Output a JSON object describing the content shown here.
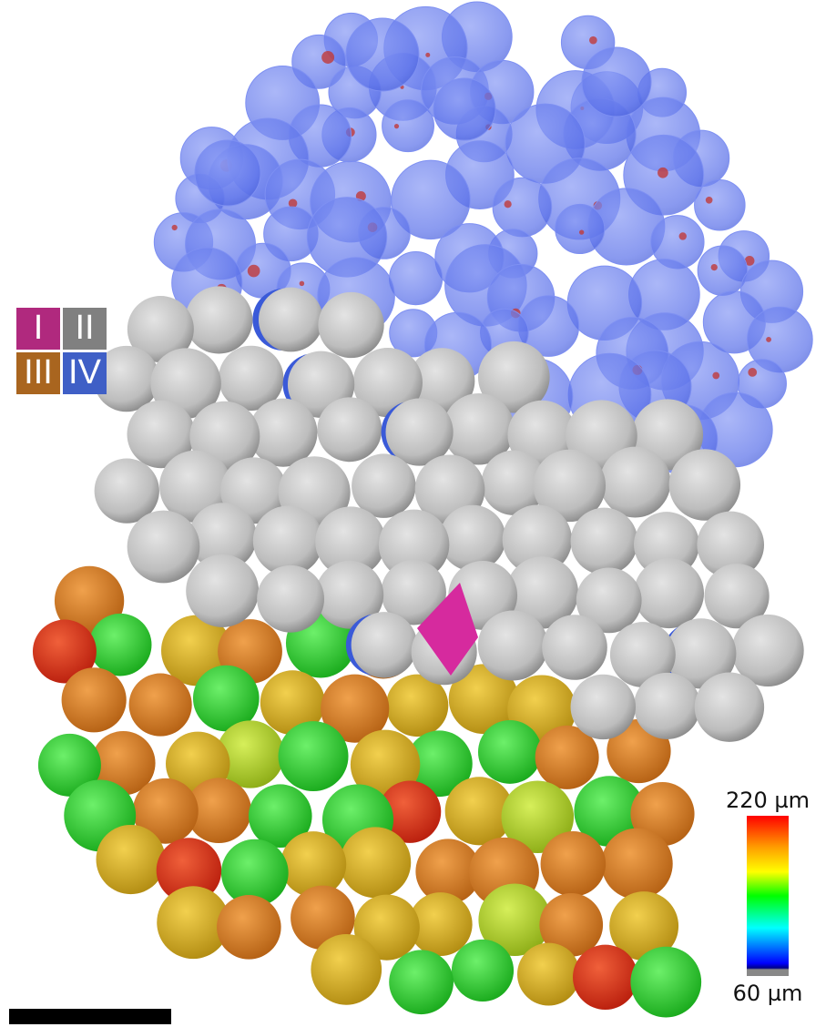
{
  "legend": {
    "items": [
      {
        "label": "I",
        "color": "#b0297e"
      },
      {
        "label": "II",
        "color": "#808080"
      },
      {
        "label": "III",
        "color": "#a9651f"
      },
      {
        "label": "IV",
        "color": "#3f5fc6"
      }
    ]
  },
  "colorbar": {
    "max_label": "220 µm",
    "min_label": "60 µm"
  }
}
